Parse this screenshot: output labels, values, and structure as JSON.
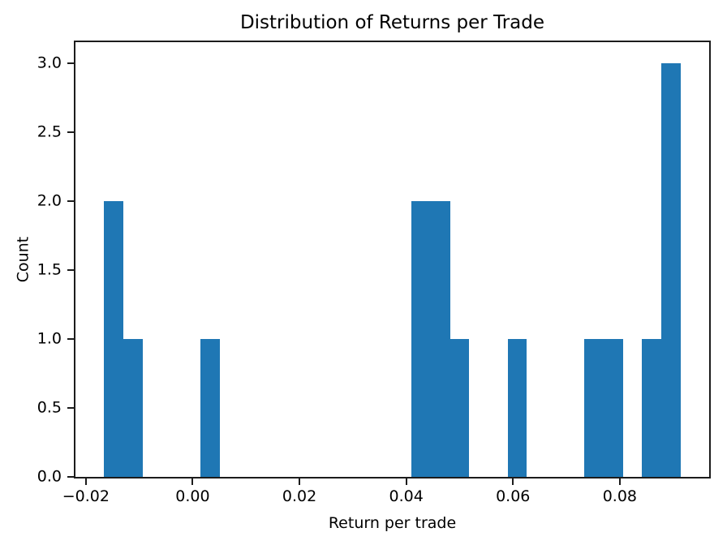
{
  "chart_data": {
    "type": "bar",
    "subtype": "histogram",
    "title": "Distribution of Returns per Trade",
    "xlabel": "Return per trade",
    "ylabel": "Count",
    "xlim": [
      -0.02195,
      0.09674
    ],
    "ylim": [
      0,
      3.15
    ],
    "grid": false,
    "legend_position": "none",
    "bin_width": 0.0036,
    "colors": {
      "bar": "#1f77b4",
      "axis": "#000000",
      "background": "#ffffff"
    },
    "xticks": [
      {
        "value": -0.02,
        "label": "−0.02"
      },
      {
        "value": 0.0,
        "label": "0.00"
      },
      {
        "value": 0.02,
        "label": "0.02"
      },
      {
        "value": 0.04,
        "label": "0.04"
      },
      {
        "value": 0.06,
        "label": "0.06"
      },
      {
        "value": 0.08,
        "label": "0.08"
      }
    ],
    "yticks": [
      {
        "value": 0.0,
        "label": "0.0"
      },
      {
        "value": 0.5,
        "label": "0.5"
      },
      {
        "value": 1.0,
        "label": "1.0"
      },
      {
        "value": 1.5,
        "label": "1.5"
      },
      {
        "value": 2.0,
        "label": "2.0"
      },
      {
        "value": 2.5,
        "label": "2.5"
      },
      {
        "value": 3.0,
        "label": "3.0"
      }
    ],
    "bars": [
      {
        "x0": -0.01656,
        "x1": -0.01296,
        "count": 2
      },
      {
        "x0": -0.01296,
        "x1": -0.00936,
        "count": 1
      },
      {
        "x0": 0.00143,
        "x1": 0.00503,
        "count": 1
      },
      {
        "x0": 0.04099,
        "x1": 0.04459,
        "count": 2
      },
      {
        "x0": 0.04459,
        "x1": 0.04819,
        "count": 2
      },
      {
        "x0": 0.04819,
        "x1": 0.05178,
        "count": 1
      },
      {
        "x0": 0.05898,
        "x1": 0.06257,
        "count": 1
      },
      {
        "x0": 0.07336,
        "x1": 0.07696,
        "count": 1
      },
      {
        "x0": 0.07696,
        "x1": 0.08056,
        "count": 1
      },
      {
        "x0": 0.08416,
        "x1": 0.08775,
        "count": 1
      },
      {
        "x0": 0.08775,
        "x1": 0.09135,
        "count": 3
      }
    ]
  }
}
